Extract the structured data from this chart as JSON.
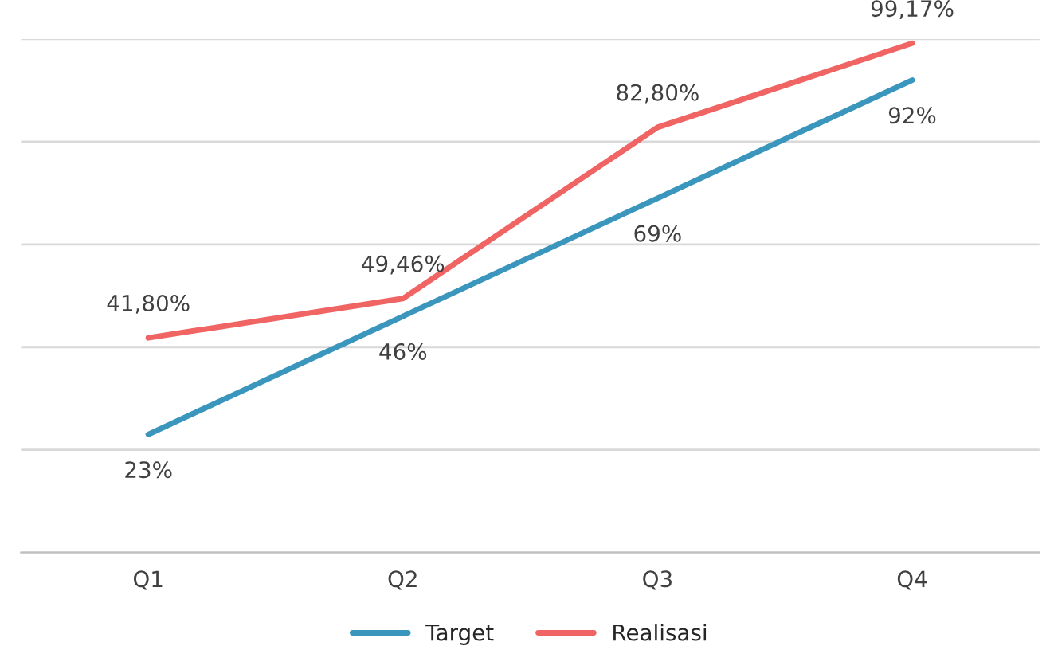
{
  "chart_data": {
    "type": "line",
    "categories": [
      "Q1",
      "Q2",
      "Q3",
      "Q4"
    ],
    "series": [
      {
        "name": "Target",
        "color": "#3a96bd",
        "values": [
          23,
          46,
          69,
          92
        ],
        "value_labels": [
          "23%",
          "46%",
          "69%",
          "92%"
        ]
      },
      {
        "name": "Realisasi",
        "color": "#f06464",
        "values": [
          41.8,
          49.46,
          82.8,
          99.17
        ],
        "value_labels": [
          "41,80%",
          "49,46%",
          "82,80%",
          "99,17%"
        ]
      }
    ],
    "ylim": [
      0,
      100
    ],
    "yticks": [
      {
        "value": 0,
        "label": null
      },
      {
        "value": 20,
        "label": null
      },
      {
        "value": 40,
        "label": null
      },
      {
        "value": 60,
        "label": null
      },
      {
        "value": 80,
        "label": null
      },
      {
        "value": 100,
        "label": null
      }
    ],
    "grid": "y",
    "tick_labels": "x",
    "legend": "bottom",
    "marker": "none",
    "line_style": "solid"
  }
}
